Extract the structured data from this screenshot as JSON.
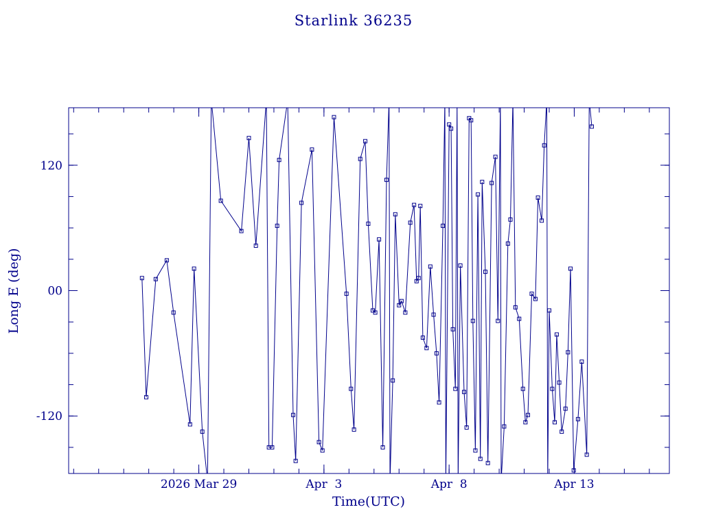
{
  "page": {
    "background": "#ffffff"
  },
  "chart_data": {
    "type": "line",
    "title": "Starlink 36235",
    "xlabel": "Time(UTC)",
    "ylabel": "Long E (deg)",
    "line_color": "#00008b",
    "marker": "open-square",
    "grid": false,
    "legend": "none",
    "xlim": [
      0,
      24
    ],
    "ylim": [
      -175,
      175
    ],
    "x_ticks": [
      {
        "x": 5.2,
        "label": "2026 Mar 29"
      },
      {
        "x": 10.2,
        "label": "Apr  3"
      },
      {
        "x": 15.2,
        "label": "Apr  8"
      },
      {
        "x": 20.2,
        "label": "Apr 13"
      }
    ],
    "x_minor_step": 1,
    "y_ticks": [
      {
        "y": 120,
        "label": "120"
      },
      {
        "y": 0,
        "label": "00"
      },
      {
        "y": -120,
        "label": "-120"
      }
    ],
    "y_minor_step": 30,
    "x_unit": "days from plot left edge; major ticks are the labelled UTC dates",
    "y_unit": "degrees East longitude, wrapping at +/-180",
    "points": [
      [
        2.93,
        12
      ],
      [
        3.1,
        -102
      ],
      [
        3.48,
        11
      ],
      [
        3.92,
        29
      ],
      [
        4.19,
        -21
      ],
      [
        4.85,
        -128
      ],
      [
        5.01,
        21
      ],
      [
        5.34,
        -135
      ],
      [
        5.55,
        -182
      ],
      [
        5.7,
        183
      ],
      [
        6.08,
        86
      ],
      [
        6.9,
        57
      ],
      [
        7.2,
        146
      ],
      [
        7.48,
        43
      ],
      [
        7.9,
        183
      ],
      [
        8.0,
        -150
      ],
      [
        8.13,
        -150
      ],
      [
        8.33,
        62
      ],
      [
        8.41,
        125
      ],
      [
        8.75,
        182
      ],
      [
        8.97,
        -119
      ],
      [
        9.07,
        -163
      ],
      [
        9.3,
        84
      ],
      [
        9.72,
        135
      ],
      [
        10.0,
        -145
      ],
      [
        10.14,
        -153
      ],
      [
        10.6,
        166
      ],
      [
        11.1,
        -3
      ],
      [
        11.28,
        -94
      ],
      [
        11.4,
        -133
      ],
      [
        11.65,
        126
      ],
      [
        11.85,
        143
      ],
      [
        11.97,
        64
      ],
      [
        12.15,
        -19
      ],
      [
        12.25,
        -21
      ],
      [
        12.4,
        49
      ],
      [
        12.55,
        -150
      ],
      [
        12.7,
        106
      ],
      [
        12.8,
        182
      ],
      [
        12.84,
        -182
      ],
      [
        12.95,
        -86
      ],
      [
        13.05,
        73
      ],
      [
        13.2,
        -14
      ],
      [
        13.3,
        -10
      ],
      [
        13.45,
        -21
      ],
      [
        13.65,
        65
      ],
      [
        13.8,
        82
      ],
      [
        13.9,
        9
      ],
      [
        13.98,
        12
      ],
      [
        14.05,
        81
      ],
      [
        14.15,
        -45
      ],
      [
        14.3,
        -55
      ],
      [
        14.45,
        23
      ],
      [
        14.58,
        -23
      ],
      [
        14.7,
        -60
      ],
      [
        14.8,
        -107
      ],
      [
        14.95,
        62
      ],
      [
        15.03,
        182
      ],
      [
        15.07,
        -182
      ],
      [
        15.2,
        159
      ],
      [
        15.28,
        155
      ],
      [
        15.35,
        -37
      ],
      [
        15.45,
        -94
      ],
      [
        15.52,
        182
      ],
      [
        15.56,
        -182
      ],
      [
        15.65,
        24
      ],
      [
        15.8,
        -97
      ],
      [
        15.9,
        -131
      ],
      [
        16.0,
        165
      ],
      [
        16.08,
        163
      ],
      [
        16.15,
        -29
      ],
      [
        16.25,
        -153
      ],
      [
        16.35,
        92
      ],
      [
        16.45,
        -161
      ],
      [
        16.52,
        104
      ],
      [
        16.65,
        18
      ],
      [
        16.75,
        -165
      ],
      [
        16.9,
        103
      ],
      [
        17.05,
        128
      ],
      [
        17.15,
        -29
      ],
      [
        17.25,
        182
      ],
      [
        17.28,
        -182
      ],
      [
        17.4,
        -130
      ],
      [
        17.55,
        45
      ],
      [
        17.65,
        68
      ],
      [
        17.75,
        182
      ],
      [
        17.85,
        -16
      ],
      [
        18.0,
        -27
      ],
      [
        18.15,
        -94
      ],
      [
        18.25,
        -126
      ],
      [
        18.35,
        -119
      ],
      [
        18.5,
        -3
      ],
      [
        18.65,
        -8
      ],
      [
        18.75,
        89
      ],
      [
        18.9,
        67
      ],
      [
        19.0,
        139
      ],
      [
        19.1,
        182
      ],
      [
        19.14,
        -182
      ],
      [
        19.2,
        -19
      ],
      [
        19.32,
        -94
      ],
      [
        19.42,
        -126
      ],
      [
        19.5,
        -42
      ],
      [
        19.6,
        -88
      ],
      [
        19.7,
        -135
      ],
      [
        19.85,
        -113
      ],
      [
        19.95,
        -59
      ],
      [
        20.05,
        21
      ],
      [
        20.18,
        -172
      ],
      [
        20.35,
        -123
      ],
      [
        20.5,
        -68
      ],
      [
        20.7,
        -157
      ],
      [
        20.8,
        183
      ],
      [
        20.9,
        157
      ]
    ]
  }
}
